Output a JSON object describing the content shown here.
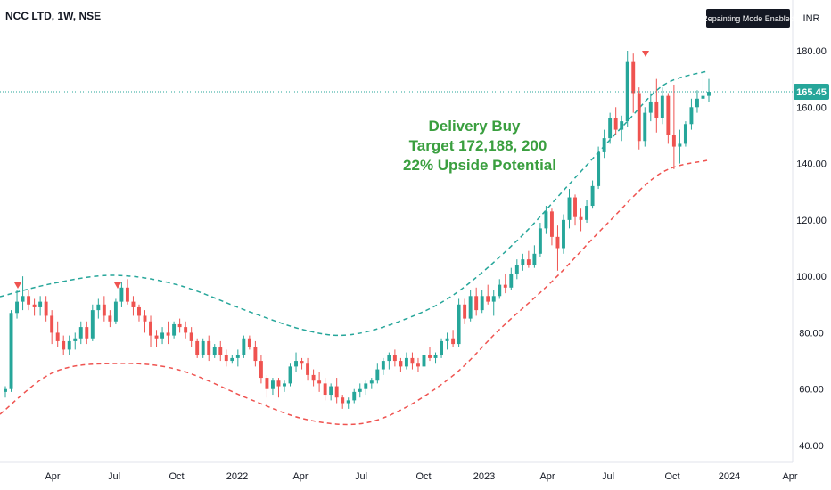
{
  "header": {
    "symbol_title": "NCC LTD, 1W, NSE",
    "repainting_badge": "Repainting Mode Enabled",
    "currency": "INR"
  },
  "last_price_label": "165.45",
  "colors": {
    "up": "#26a69a",
    "down": "#ef5350",
    "upper_band": "#26a69a",
    "lower_band": "#ef5350",
    "annotation": "#3a9f3f",
    "price_line": "#26a69a"
  },
  "annotation": {
    "line1": "Delivery Buy",
    "line2": "Target 172,188, 200",
    "line3": "22% Upside Potential"
  },
  "chart_data": {
    "type": "candlestick",
    "y_axis_ticks": [
      "180.00",
      "160.00",
      "140.00",
      "120.00",
      "100.00",
      "80.00",
      "60.00",
      "40.00"
    ],
    "ylim": [
      35,
      190
    ],
    "x_axis_labels": [
      "Apr",
      "Jul",
      "Oct",
      "2022",
      "Apr",
      "Jul",
      "Oct",
      "2023",
      "Apr",
      "Jul",
      "Oct",
      "2024",
      "Apr"
    ],
    "last_price": 165.45,
    "candles_ohlc": [
      [
        59,
        61,
        57,
        60
      ],
      [
        60,
        88,
        59,
        87
      ],
      [
        87,
        95,
        85,
        91
      ],
      [
        91,
        100,
        88,
        93
      ],
      [
        93,
        95,
        88,
        90
      ],
      [
        90,
        92,
        86,
        89
      ],
      [
        89,
        93,
        86,
        91
      ],
      [
        91,
        93,
        84,
        86
      ],
      [
        86,
        88,
        76,
        80
      ],
      [
        80,
        84,
        75,
        77
      ],
      [
        77,
        79,
        72,
        74
      ],
      [
        74,
        79,
        72,
        77
      ],
      [
        77,
        80,
        74,
        78
      ],
      [
        78,
        84,
        76,
        82
      ],
      [
        82,
        84,
        76,
        78
      ],
      [
        78,
        90,
        77,
        88
      ],
      [
        88,
        92,
        85,
        90
      ],
      [
        90,
        93,
        84,
        86
      ],
      [
        86,
        88,
        82,
        84
      ],
      [
        84,
        92,
        83,
        91
      ],
      [
        91,
        98,
        89,
        96
      ],
      [
        96,
        99,
        90,
        91
      ],
      [
        91,
        93,
        86,
        89
      ],
      [
        89,
        90,
        84,
        86
      ],
      [
        86,
        88,
        80,
        84
      ],
      [
        84,
        86,
        75,
        79
      ],
      [
        79,
        81,
        75,
        78
      ],
      [
        78,
        82,
        76,
        80
      ],
      [
        80,
        84,
        76,
        79
      ],
      [
        79,
        84,
        78,
        83
      ],
      [
        83,
        85,
        80,
        82
      ],
      [
        82,
        84,
        78,
        80
      ],
      [
        80,
        82,
        75,
        77
      ],
      [
        77,
        78,
        71,
        72
      ],
      [
        72,
        78,
        71,
        77
      ],
      [
        77,
        79,
        70,
        72
      ],
      [
        72,
        76,
        71,
        75
      ],
      [
        75,
        77,
        70,
        72
      ],
      [
        72,
        74,
        68,
        70
      ],
      [
        70,
        72,
        69,
        71
      ],
      [
        71,
        74,
        68,
        72
      ],
      [
        72,
        79,
        71,
        78
      ],
      [
        78,
        79,
        74,
        75
      ],
      [
        75,
        77,
        68,
        70
      ],
      [
        70,
        72,
        62,
        64
      ],
      [
        64,
        65,
        57,
        60
      ],
      [
        60,
        64,
        58,
        63
      ],
      [
        63,
        64,
        57,
        61
      ],
      [
        61,
        63,
        59,
        62
      ],
      [
        62,
        69,
        61,
        68
      ],
      [
        68,
        73,
        66,
        70
      ],
      [
        70,
        71,
        67,
        69
      ],
      [
        69,
        71,
        63,
        65
      ],
      [
        65,
        67,
        61,
        63
      ],
      [
        63,
        66,
        59,
        62
      ],
      [
        62,
        64,
        56,
        58
      ],
      [
        58,
        62,
        56,
        61
      ],
      [
        61,
        64,
        55,
        57
      ],
      [
        57,
        58,
        53,
        55
      ],
      [
        55,
        57,
        53,
        56
      ],
      [
        56,
        60,
        55,
        59
      ],
      [
        59,
        62,
        57,
        60
      ],
      [
        60,
        63,
        58,
        62
      ],
      [
        62,
        64,
        60,
        63
      ],
      [
        63,
        69,
        62,
        67
      ],
      [
        67,
        71,
        65,
        70
      ],
      [
        70,
        73,
        67,
        72
      ],
      [
        72,
        74,
        68,
        70
      ],
      [
        70,
        71,
        66,
        68
      ],
      [
        68,
        73,
        67,
        71
      ],
      [
        71,
        73,
        67,
        69
      ],
      [
        69,
        71,
        66,
        68
      ],
      [
        68,
        73,
        67,
        72
      ],
      [
        72,
        75,
        70,
        71
      ],
      [
        71,
        73,
        69,
        72
      ],
      [
        72,
        78,
        71,
        77
      ],
      [
        77,
        80,
        74,
        78
      ],
      [
        78,
        81,
        75,
        76
      ],
      [
        76,
        92,
        75,
        90
      ],
      [
        90,
        92,
        83,
        85
      ],
      [
        85,
        95,
        84,
        93
      ],
      [
        93,
        96,
        86,
        88
      ],
      [
        88,
        95,
        87,
        93
      ],
      [
        93,
        97,
        90,
        91
      ],
      [
        91,
        95,
        86,
        93
      ],
      [
        93,
        99,
        92,
        97
      ],
      [
        97,
        101,
        94,
        96
      ],
      [
        96,
        103,
        95,
        101
      ],
      [
        101,
        106,
        99,
        104
      ],
      [
        104,
        108,
        102,
        106
      ],
      [
        106,
        109,
        103,
        104
      ],
      [
        104,
        111,
        103,
        108
      ],
      [
        108,
        119,
        107,
        117
      ],
      [
        117,
        125,
        115,
        123
      ],
      [
        123,
        124,
        111,
        114
      ],
      [
        114,
        118,
        102,
        110
      ],
      [
        110,
        122,
        108,
        120
      ],
      [
        120,
        131,
        117,
        128
      ],
      [
        128,
        129,
        118,
        121
      ],
      [
        121,
        124,
        116,
        120
      ],
      [
        120,
        127,
        119,
        125
      ],
      [
        125,
        134,
        124,
        132
      ],
      [
        132,
        146,
        131,
        144
      ],
      [
        144,
        152,
        142,
        149
      ],
      [
        149,
        158,
        147,
        156
      ],
      [
        156,
        160,
        150,
        152
      ],
      [
        152,
        157,
        148,
        155
      ],
      [
        155,
        180,
        153,
        176
      ],
      [
        176,
        179,
        158,
        165
      ],
      [
        165,
        167,
        145,
        148
      ],
      [
        148,
        160,
        146,
        158
      ],
      [
        158,
        165,
        155,
        162
      ],
      [
        162,
        170,
        151,
        156
      ],
      [
        156,
        167,
        154,
        164
      ],
      [
        164,
        165,
        147,
        150
      ],
      [
        150,
        168,
        138,
        146
      ],
      [
        146,
        152,
        140,
        147
      ],
      [
        147,
        155,
        146,
        154
      ],
      [
        154,
        163,
        152,
        160
      ],
      [
        160,
        166,
        158,
        163
      ],
      [
        163,
        172,
        162,
        164
      ],
      [
        164,
        170,
        162,
        165.45
      ]
    ],
    "upper_band_start": 90,
    "lower_band_start": 50
  }
}
